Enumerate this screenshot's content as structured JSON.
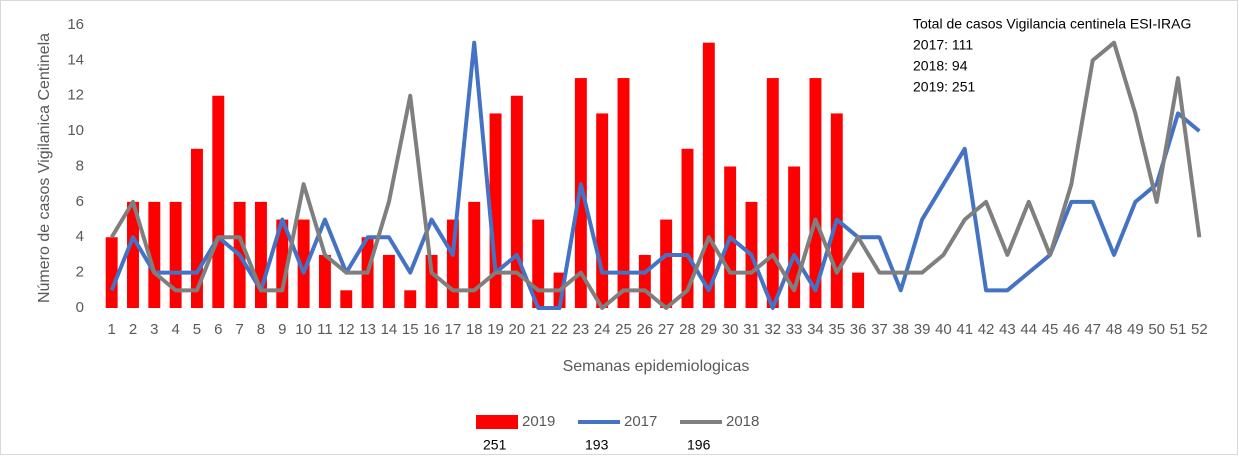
{
  "chart_data": {
    "type": "bar_line",
    "ylabel": "Número de casos Vigilanica Centinela",
    "xlabel": "Semanas epidemiologicas",
    "annotation": [
      "Total de casos Vigilancia centinela ESI-IRAG",
      "2017: 111",
      "2018: 94",
      "2019: 251"
    ],
    "categories": [
      1,
      2,
      3,
      4,
      5,
      6,
      7,
      8,
      9,
      10,
      11,
      12,
      13,
      14,
      15,
      16,
      17,
      18,
      19,
      20,
      21,
      22,
      23,
      24,
      25,
      26,
      27,
      28,
      29,
      30,
      31,
      32,
      33,
      34,
      35,
      36,
      37,
      38,
      39,
      40,
      41,
      42,
      43,
      44,
      45,
      46,
      47,
      48,
      49,
      50,
      51,
      52
    ],
    "series": [
      {
        "name": "2019",
        "type": "bar",
        "color": "#ff0000",
        "total": 251,
        "values": [
          4,
          6,
          6,
          6,
          9,
          12,
          6,
          6,
          5,
          5,
          3,
          1,
          4,
          3,
          1,
          3,
          5,
          6,
          11,
          12,
          5,
          2,
          13,
          11,
          13,
          3,
          5,
          9,
          15,
          8,
          6,
          13,
          8,
          13,
          11,
          2,
          null,
          null,
          null,
          null,
          null,
          null,
          null,
          null,
          null,
          null,
          null,
          null,
          null,
          null,
          null,
          null
        ]
      },
      {
        "name": "2017",
        "type": "line",
        "color": "#4472c4",
        "total": 193,
        "values": [
          1,
          4,
          2,
          2,
          2,
          4,
          3,
          1,
          5,
          2,
          5,
          2,
          4,
          4,
          2,
          5,
          3,
          15,
          2,
          3,
          0,
          0,
          7,
          2,
          2,
          2,
          3,
          3,
          1,
          4,
          3,
          0,
          3,
          1,
          5,
          4,
          4,
          1,
          5,
          7,
          9,
          1,
          1,
          2,
          3,
          6,
          6,
          3,
          6,
          7,
          11,
          10
        ]
      },
      {
        "name": "2018",
        "type": "line",
        "color": "#7f7f7f",
        "total": 196,
        "values": [
          4,
          6,
          2,
          1,
          1,
          4,
          4,
          1,
          1,
          7,
          3,
          2,
          2,
          6,
          12,
          2,
          1,
          1,
          2,
          2,
          1,
          1,
          2,
          0,
          1,
          1,
          0,
          1,
          4,
          2,
          2,
          3,
          1,
          5,
          2,
          4,
          2,
          2,
          2,
          3,
          5,
          6,
          3,
          6,
          3,
          7,
          14,
          15,
          11,
          6,
          13,
          4
        ]
      }
    ],
    "ylim": [
      0,
      16
    ],
    "yticks": [
      0,
      2,
      4,
      6,
      8,
      10,
      12,
      14,
      16
    ],
    "grid": false,
    "legend": "bottom"
  }
}
